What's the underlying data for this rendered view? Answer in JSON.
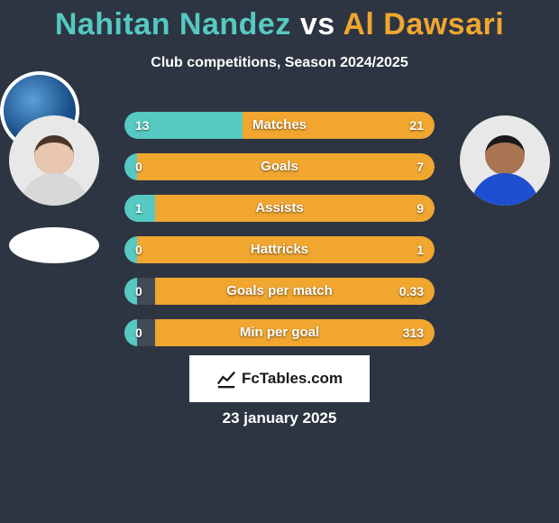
{
  "title": {
    "player1_name": "Nahitan Nandez",
    "vs": "vs",
    "player2_name": "Al Dawsari",
    "player1_color": "#55c9c2",
    "player2_color": "#f0a62f"
  },
  "subtitle": "Club competitions, Season 2024/2025",
  "date": "23 january 2025",
  "footer_brand": "FcTables.com",
  "colors": {
    "background": "#2d3542",
    "bar_track": "#424a58",
    "player1_fill": "#55c9c2",
    "player2_fill": "#f0a62f",
    "text": "#ffffff"
  },
  "player1_avatar": {
    "skin": "#e9c6b0",
    "hair": "#4a3428",
    "shirt": "#d8d8d8"
  },
  "player2_avatar": {
    "skin": "#a87452",
    "hair": "#1a1a1a",
    "shirt": "#1f4fd1"
  },
  "club2_logo": {
    "bg_outer": "#ffffff",
    "bg_inner": "#1a4f8a"
  },
  "stats": [
    {
      "label": "Matches",
      "p1_value": "13",
      "p2_value": "21",
      "p1_pct": 38,
      "p2_pct": 62
    },
    {
      "label": "Goals",
      "p1_value": "0",
      "p2_value": "7",
      "p1_pct": 4,
      "p2_pct": 96
    },
    {
      "label": "Assists",
      "p1_value": "1",
      "p2_value": "9",
      "p1_pct": 10,
      "p2_pct": 90
    },
    {
      "label": "Hattricks",
      "p1_value": "0",
      "p2_value": "1",
      "p1_pct": 4,
      "p2_pct": 96
    },
    {
      "label": "Goals per match",
      "p1_value": "0",
      "p2_value": "0.33",
      "p1_pct": 4,
      "p2_pct": 90
    },
    {
      "label": "Min per goal",
      "p1_value": "0",
      "p2_value": "313",
      "p1_pct": 4,
      "p2_pct": 90
    }
  ]
}
